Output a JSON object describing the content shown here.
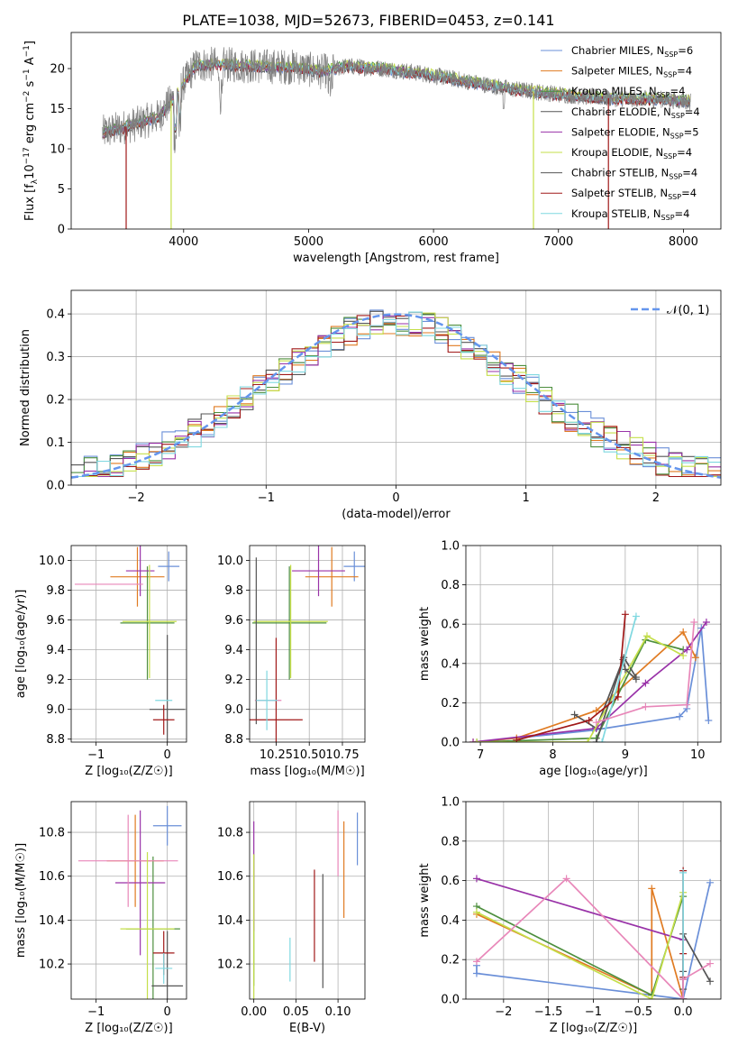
{
  "title": "PLATE=1038, MJD=52673, FIBERID=0453, z=0.141",
  "colors": {
    "chabrier_miles": "#6a8fd8",
    "salpeter_miles": "#e07b22",
    "kroupa_miles": "#4d8f3e",
    "chabrier_elodie": "#555555",
    "salpeter_elodie": "#9932a8",
    "kroupa_elodie": "#c5df4a",
    "chabrier_stelib": "#555555",
    "salpeter_stelib": "#a01818",
    "kroupa_stelib": "#7fd8e0",
    "normal": "#6495ed",
    "pink": "#e887b9",
    "spectrum": "#7f7f7f"
  },
  "chart_data": [
    {
      "id": "spectrum",
      "type": "line",
      "xlabel": "wavelength [Angstrom, rest frame]",
      "ylabel": "Flux [f_λ10^-17 erg cm^-2 s^-1 A^-1]",
      "xlim": [
        3100,
        8300
      ],
      "ylim": [
        0,
        24.5
      ],
      "xticks": [
        4000,
        5000,
        6000,
        7000,
        8000
      ],
      "yticks": [
        0,
        5,
        10,
        15,
        20
      ],
      "legend_position": "top-right",
      "legend": [
        {
          "label": "Chabrier MILES, N",
          "sub": "SSP",
          "tail": "=6",
          "color": "#6a8fd8"
        },
        {
          "label": "Salpeter MILES, N",
          "sub": "SSP",
          "tail": "=4",
          "color": "#e07b22"
        },
        {
          "label": "Kroupa MILES, N",
          "sub": "SSP",
          "tail": "=4",
          "color": "#4d8f3e"
        },
        {
          "label": "Chabrier ELODIE, N",
          "sub": "SSP",
          "tail": "=4",
          "color": "#555555"
        },
        {
          "label": "Salpeter ELODIE, N",
          "sub": "SSP",
          "tail": "=5",
          "color": "#9932a8"
        },
        {
          "label": "Kroupa ELODIE, N",
          "sub": "SSP",
          "tail": "=4",
          "color": "#c5df4a"
        },
        {
          "label": "Chabrier STELIB, N",
          "sub": "SSP",
          "tail": "=4",
          "color": "#555555"
        },
        {
          "label": "Salpeter STELIB, N",
          "sub": "SSP",
          "tail": "=4",
          "color": "#a01818"
        },
        {
          "label": "Kroupa STELIB, N",
          "sub": "SSP",
          "tail": "=4",
          "color": "#7fd8e0"
        }
      ],
      "continuum": [
        [
          3350,
          12
        ],
        [
          3600,
          13
        ],
        [
          3800,
          14
        ],
        [
          3950,
          17
        ],
        [
          4100,
          20.5
        ],
        [
          4300,
          20.5
        ],
        [
          4600,
          20.3
        ],
        [
          4900,
          20.2
        ],
        [
          5100,
          19.6
        ],
        [
          5300,
          20.3
        ],
        [
          5600,
          20
        ],
        [
          5900,
          19.4
        ],
        [
          6200,
          18.6
        ],
        [
          6600,
          17.5
        ],
        [
          7000,
          16.8
        ],
        [
          7400,
          16.3
        ],
        [
          7800,
          16.2
        ],
        [
          8050,
          15.9
        ]
      ]
    },
    {
      "id": "residuals",
      "type": "histogram",
      "xlabel": "(data-model)/error",
      "ylabel": "Normed distribution",
      "xlim": [
        -2.5,
        2.5
      ],
      "ylim": [
        0,
        0.455
      ],
      "xticks": [
        -2,
        -1,
        0,
        1,
        2
      ],
      "yticks": [
        0.0,
        0.1,
        0.2,
        0.3,
        0.4
      ],
      "legend": "𝒩(0, 1)",
      "bin_width": 0.1
    },
    {
      "id": "age_vs_Z",
      "type": "errorbar",
      "xlabel": "Z [log₁₀(Z/Z☉)]",
      "ylabel": "age [log₁₀(age/yr)]",
      "xlim": [
        -1.35,
        0.27
      ],
      "ylim": [
        8.78,
        10.1
      ],
      "xticks": [
        -1,
        0
      ],
      "yticks": [
        8.8,
        9.0,
        9.2,
        9.4,
        9.6,
        9.8,
        10.0
      ],
      "points": [
        {
          "x": 0.02,
          "xerr": 0.15,
          "y": 9.96,
          "yerr": 0.1,
          "color": "#6a8fd8"
        },
        {
          "x": -0.42,
          "xerr": 0.38,
          "y": 9.89,
          "yerr": 0.2,
          "color": "#e07b22"
        },
        {
          "x": -0.28,
          "xerr": 0.38,
          "y": 9.58,
          "yerr": 0.38,
          "color": "#4d8f3e"
        },
        {
          "x": -0.38,
          "xerr": 0.2,
          "y": 9.93,
          "yerr": 0.17,
          "color": "#9932a8"
        },
        {
          "x": -0.82,
          "xerr": 0.48,
          "y": 9.84,
          "yerr": 0.0,
          "color": "#e887b9"
        },
        {
          "x": -0.25,
          "xerr": 0.38,
          "y": 9.59,
          "yerr": 0.38,
          "color": "#c5df4a"
        },
        {
          "x": 0.0,
          "xerr": 0.25,
          "y": 9.0,
          "yerr": 0.5,
          "color": "#555555"
        },
        {
          "x": -0.05,
          "xerr": 0.15,
          "y": 8.93,
          "yerr": 0.1,
          "color": "#a01818"
        },
        {
          "x": -0.05,
          "xerr": 0.12,
          "y": 9.06,
          "yerr": 0.0,
          "color": "#7fd8e0"
        }
      ]
    },
    {
      "id": "age_vs_mass",
      "type": "errorbar",
      "xlabel": "mass [log₁₀(M/M☉)]",
      "ylabel": "",
      "xlim": [
        10.05,
        10.92
      ],
      "ylim": [
        8.78,
        10.1
      ],
      "xticks": [
        10.25,
        10.5,
        10.75
      ],
      "yticks": [
        8.8,
        9.0,
        9.2,
        9.4,
        9.6,
        9.8,
        10.0
      ],
      "points": [
        {
          "x": 10.84,
          "xerr": 0.08,
          "y": 9.96,
          "yerr": 0.1,
          "color": "#6a8fd8"
        },
        {
          "x": 10.67,
          "xerr": 0.2,
          "y": 9.89,
          "yerr": 0.2,
          "color": "#e07b22"
        },
        {
          "x": 10.35,
          "xerr": 0.28,
          "y": 9.58,
          "yerr": 0.38,
          "color": "#4d8f3e"
        },
        {
          "x": 10.57,
          "xerr": 0.2,
          "y": 9.93,
          "yerr": 0.17,
          "color": "#9932a8"
        },
        {
          "x": 10.19,
          "xerr": 0.1,
          "y": 9.06,
          "yerr": 0.0,
          "color": "#e887b9"
        },
        {
          "x": 10.36,
          "xerr": 0.28,
          "y": 9.59,
          "yerr": 0.38,
          "color": "#c5df4a"
        },
        {
          "x": 10.1,
          "xerr": 0.0,
          "y": 9.46,
          "yerr": 0.56,
          "color": "#555555"
        },
        {
          "x": 10.25,
          "xerr": 0.2,
          "y": 8.93,
          "yerr": 0.55,
          "color": "#a01818"
        },
        {
          "x": 10.18,
          "xerr": 0.08,
          "y": 9.06,
          "yerr": 0.2,
          "color": "#7fd8e0"
        }
      ]
    },
    {
      "id": "weight_vs_age",
      "type": "line",
      "xlabel": "age [log₁₀(age/yr)]",
      "ylabel": "mass weight",
      "xlim": [
        6.8,
        10.32
      ],
      "ylim": [
        0,
        1.0
      ],
      "xticks": [
        7,
        8,
        9,
        10
      ],
      "yticks": [
        0.0,
        0.2,
        0.4,
        0.6,
        0.8,
        1.0
      ],
      "series": [
        {
          "color": "#6a8fd8",
          "x": [
            6.95,
            8.55,
            9.75,
            9.85,
            10.05,
            10.15
          ],
          "y": [
            0.0,
            0.06,
            0.13,
            0.17,
            0.58,
            0.11
          ]
        },
        {
          "color": "#e07b22",
          "x": [
            6.9,
            7.5,
            8.6,
            9.8,
            9.97
          ],
          "y": [
            0.0,
            0.02,
            0.16,
            0.56,
            0.43
          ]
        },
        {
          "color": "#4d8f3e",
          "x": [
            6.95,
            8.6,
            9.28,
            9.8
          ],
          "y": [
            0.0,
            0.02,
            0.52,
            0.47
          ]
        },
        {
          "color": "#555555",
          "x": [
            8.3,
            8.6,
            8.98,
            9.15
          ],
          "y": [
            0.14,
            0.07,
            0.43,
            0.33
          ]
        },
        {
          "color": "#9932a8",
          "x": [
            6.9,
            8.6,
            9.28,
            9.85,
            10.12
          ],
          "y": [
            0.0,
            0.07,
            0.3,
            0.47,
            0.61
          ]
        },
        {
          "color": "#c5df4a",
          "x": [
            6.95,
            8.48,
            9.3,
            9.8
          ],
          "y": [
            0.0,
            0.0,
            0.54,
            0.44
          ]
        },
        {
          "color": "#555555",
          "x": [
            8.6,
            8.97,
            9.0,
            9.15
          ],
          "y": [
            0.0,
            0.42,
            0.37,
            0.32
          ]
        },
        {
          "color": "#a01818",
          "x": [
            7.5,
            8.5,
            8.9,
            9.0
          ],
          "y": [
            0.01,
            0.11,
            0.23,
            0.65
          ]
        },
        {
          "color": "#7fd8e0",
          "x": [
            8.68,
            9.15
          ],
          "y": [
            0.0,
            0.64
          ]
        },
        {
          "color": "#e887b9",
          "x": [
            8.6,
            9.28,
            9.85,
            9.95
          ],
          "y": [
            0.1,
            0.18,
            0.19,
            0.61
          ]
        }
      ]
    },
    {
      "id": "mass_vs_Z",
      "type": "errorbar",
      "xlabel": "Z [log₁₀(Z/Z☉)]",
      "ylabel": "mass [log₁₀(M/M☉)]",
      "xlim": [
        -1.35,
        0.27
      ],
      "ylim": [
        10.04,
        10.94
      ],
      "xticks": [
        -1,
        0
      ],
      "yticks": [
        10.2,
        10.4,
        10.6,
        10.8
      ],
      "points": [
        {
          "x": 0.0,
          "xerr": 0.2,
          "y": 10.83,
          "yerr": 0.09,
          "color": "#6a8fd8"
        },
        {
          "x": -0.45,
          "xerr": 0.4,
          "y": 10.67,
          "yerr": 0.21,
          "color": "#e07b22"
        },
        {
          "x": -0.2,
          "xerr": 0.38,
          "y": 10.36,
          "yerr": 0.33,
          "color": "#4d8f3e"
        },
        {
          "x": -0.38,
          "xerr": 0.35,
          "y": 10.57,
          "yerr": 0.33,
          "color": "#9932a8"
        },
        {
          "x": -0.55,
          "xerr": 0.7,
          "y": 10.67,
          "yerr": 0.21,
          "color": "#e887b9"
        },
        {
          "x": -0.28,
          "xerr": 0.38,
          "y": 10.36,
          "yerr": 0.35,
          "color": "#c5df4a"
        },
        {
          "x": 0.0,
          "xerr": 0.22,
          "y": 10.1,
          "yerr": 0.25,
          "color": "#555555"
        },
        {
          "x": -0.05,
          "xerr": 0.15,
          "y": 10.25,
          "yerr": 0.1,
          "color": "#a01818"
        },
        {
          "x": -0.05,
          "xerr": 0.12,
          "y": 10.18,
          "yerr": 0.07,
          "color": "#7fd8e0"
        }
      ]
    },
    {
      "id": "mass_vs_ebv",
      "type": "errorbar",
      "xlabel": "E(B-V)",
      "ylabel": "",
      "xlim": [
        -0.005,
        0.132
      ],
      "ylim": [
        10.04,
        10.94
      ],
      "xticks": [
        0.0,
        0.05,
        0.1
      ],
      "yticks": [
        10.2,
        10.4,
        10.6,
        10.8
      ],
      "points": [
        {
          "x": 0.123,
          "xerr": 0.0,
          "y": 10.77,
          "yerr": 0.12,
          "color": "#6a8fd8"
        },
        {
          "x": 0.107,
          "xerr": 0.0,
          "y": 10.63,
          "yerr": 0.22,
          "color": "#e07b22"
        },
        {
          "x": 0.0,
          "xerr": 0.0,
          "y": 10.4,
          "yerr": 0.3,
          "color": "#4d8f3e"
        },
        {
          "x": 0.0,
          "xerr": 0.0,
          "y": 10.6,
          "yerr": 0.25,
          "color": "#9932a8"
        },
        {
          "x": 0.1,
          "xerr": 0.0,
          "y": 10.75,
          "yerr": 0.15,
          "color": "#e887b9"
        },
        {
          "x": 0.0,
          "xerr": 0.0,
          "y": 10.35,
          "yerr": 0.35,
          "color": "#c5df4a"
        },
        {
          "x": 0.082,
          "xerr": 0.0,
          "y": 10.35,
          "yerr": 0.26,
          "color": "#555555"
        },
        {
          "x": 0.072,
          "xerr": 0.0,
          "y": 10.42,
          "yerr": 0.21,
          "color": "#a01818"
        },
        {
          "x": 0.043,
          "xerr": 0.0,
          "y": 10.22,
          "yerr": 0.1,
          "color": "#7fd8e0"
        }
      ]
    },
    {
      "id": "weight_vs_Z",
      "type": "line",
      "xlabel": "Z [log₁₀(Z/Z☉)]",
      "ylabel": "mass weight",
      "xlim": [
        -2.42,
        0.42
      ],
      "ylim": [
        0,
        1.0
      ],
      "xticks": [
        -2.0,
        -1.5,
        -1.0,
        -0.5,
        0.0
      ],
      "yticks": [
        0.0,
        0.2,
        0.4,
        0.6,
        0.8,
        1.0
      ],
      "series": [
        {
          "color": "#6a8fd8",
          "x": [
            -2.3,
            -2.3,
            0.0,
            0.0,
            0.3
          ],
          "y": [
            0.17,
            0.13,
            0.0,
            0.0,
            0.59
          ]
        },
        {
          "color": "#e07b22",
          "x": [
            -2.3,
            -0.35,
            -0.35,
            0.0
          ],
          "y": [
            0.43,
            0.02,
            0.56,
            0.0
          ]
        },
        {
          "color": "#4d8f3e",
          "x": [
            -2.3,
            -0.35,
            0.0
          ],
          "y": [
            0.47,
            0.02,
            0.52
          ]
        },
        {
          "color": "#555555",
          "x": [
            0.0,
            0.0,
            0.0,
            0.0
          ],
          "y": [
            0.0,
            0.05,
            0.1,
            0.14
          ]
        },
        {
          "color": "#9932a8",
          "x": [
            -2.3,
            0.0,
            0.0
          ],
          "y": [
            0.61,
            0.3,
            0.0
          ]
        },
        {
          "color": "#c5df4a",
          "x": [
            -2.3,
            -0.35,
            0.0
          ],
          "y": [
            0.44,
            0.0,
            0.54
          ]
        },
        {
          "color": "#555555",
          "x": [
            0.0,
            0.0,
            0.3
          ],
          "y": [
            0.0,
            0.33,
            0.09
          ]
        },
        {
          "color": "#a01818",
          "x": [
            0.0,
            0.0,
            0.0,
            0.0
          ],
          "y": [
            0.0,
            0.11,
            0.23,
            0.65
          ]
        },
        {
          "color": "#7fd8e0",
          "x": [
            0.0,
            0.0
          ],
          "y": [
            0.0,
            0.64
          ]
        },
        {
          "color": "#e887b9",
          "x": [
            -2.3,
            -1.3,
            0.0,
            0.0,
            0.3
          ],
          "y": [
            0.19,
            0.61,
            0.0,
            0.1,
            0.18
          ]
        }
      ]
    }
  ]
}
